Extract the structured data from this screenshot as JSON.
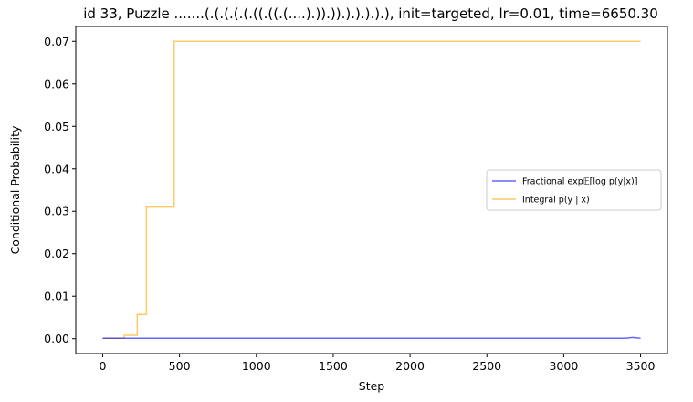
{
  "chart_data": {
    "type": "line",
    "title": "id 33, Puzzle .......(.(.(.(.(.((.((.(....).)).)).).).).).), init=targeted, lr=0.01, time=6650.30",
    "xlabel": "Step",
    "ylabel": "Conditional Probability",
    "xlim": [
      -175,
      3675
    ],
    "ylim": [
      -0.0035,
      0.0735
    ],
    "xticks": [
      0,
      500,
      1000,
      1500,
      2000,
      2500,
      3000,
      3500
    ],
    "yticks": [
      0.0,
      0.01,
      0.02,
      0.03,
      0.04,
      0.05,
      0.06,
      0.07
    ],
    "ytick_labels": [
      "0.00",
      "0.01",
      "0.02",
      "0.03",
      "0.04",
      "0.05",
      "0.06",
      "0.07"
    ],
    "grid": false,
    "legend_position": "center-right",
    "series": [
      {
        "name": "Fractional exp𝔼[log p(y|x)]",
        "color": "#0000ff",
        "alpha": 0.6,
        "x": [
          0,
          500,
          1000,
          1500,
          2000,
          2500,
          3000,
          3400,
          3450,
          3500
        ],
        "y": [
          0.0001,
          0.0001,
          0.0001,
          0.0001,
          0.0001,
          0.0001,
          0.0001,
          0.0001,
          0.0003,
          0.0001
        ]
      },
      {
        "name": "Integral p(y | x)",
        "color": "#ffa500",
        "alpha": 0.6,
        "step": true,
        "x": [
          0,
          140,
          225,
          285,
          465,
          3500
        ],
        "y": [
          0.0001,
          0.0008,
          0.0057,
          0.031,
          0.07,
          0.07
        ]
      }
    ]
  }
}
